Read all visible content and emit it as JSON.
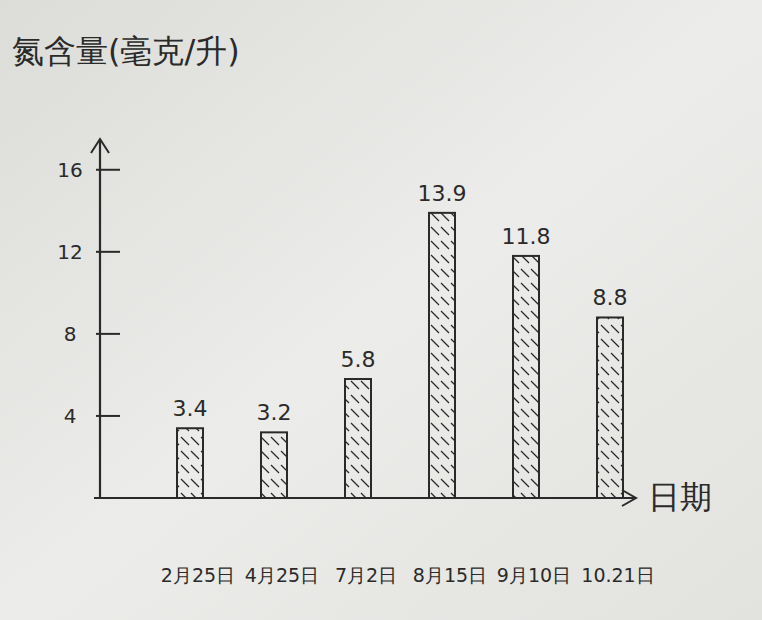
{
  "chart_data": {
    "type": "bar",
    "y_label": "氮含量(毫克/升)",
    "x_label": "日期",
    "categories": [
      "2月25日",
      "4月25日",
      "7月2日",
      "8月15日",
      "9月10日",
      "10.21日"
    ],
    "values": [
      3.4,
      3.2,
      5.8,
      13.9,
      11.8,
      8.8
    ],
    "color": "#2a2a2a",
    "ylim": [
      0,
      17.5
    ],
    "yticks": [
      4,
      8,
      12,
      16
    ],
    "grid": false,
    "data_labels": true
  }
}
